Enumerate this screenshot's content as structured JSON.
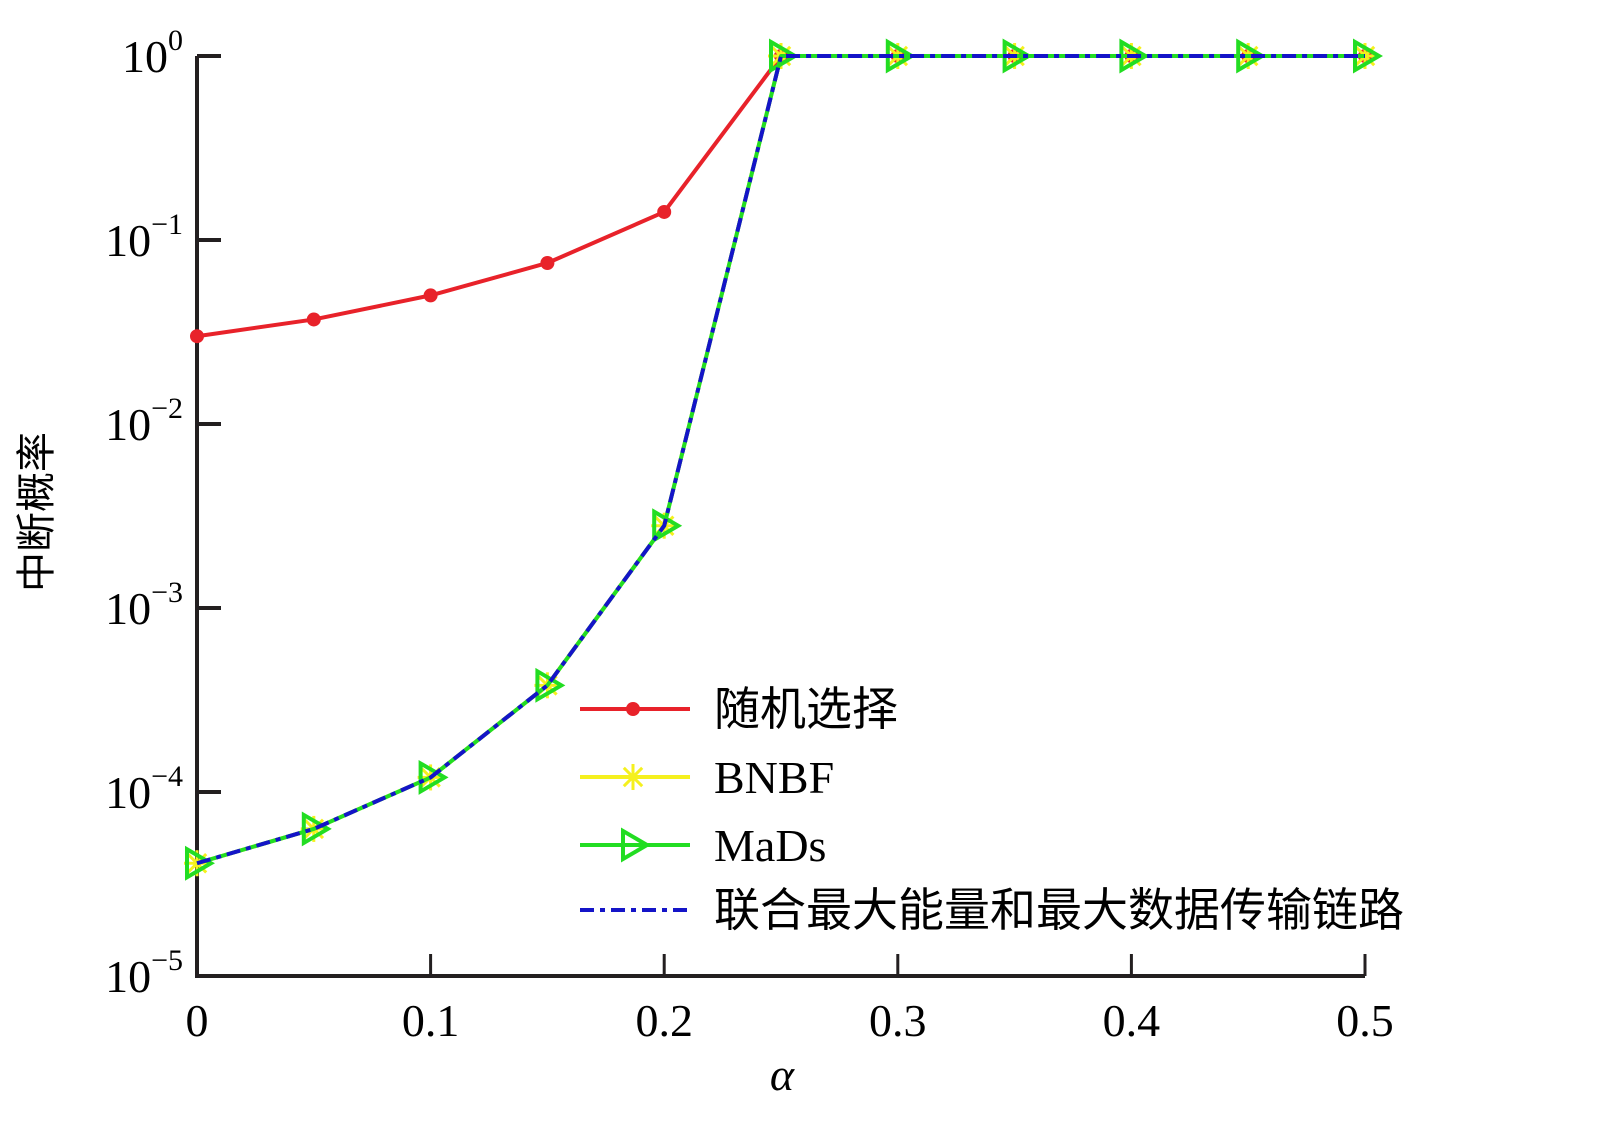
{
  "chart_data": {
    "type": "line",
    "title": "",
    "xlabel": "α",
    "ylabel": "中断概率",
    "yscale": "log",
    "xlim": [
      0,
      0.5
    ],
    "ylim": [
      1e-05,
      1
    ],
    "grid": false,
    "legend_position": "lower right (inside)",
    "x": [
      0,
      0.05,
      0.1,
      0.15,
      0.2,
      0.25,
      0.3,
      0.35,
      0.4,
      0.45,
      0.5
    ],
    "x_ticks": [
      "0",
      "0.1",
      "0.2",
      "0.3",
      "0.4",
      "0.5"
    ],
    "y_ticks": [
      {
        "base": "10",
        "exp": "0"
      },
      {
        "base": "10",
        "exp": "−1"
      },
      {
        "base": "10",
        "exp": "−2"
      },
      {
        "base": "10",
        "exp": "−3"
      },
      {
        "base": "10",
        "exp": "−4"
      },
      {
        "base": "10",
        "exp": "−5"
      }
    ],
    "series": [
      {
        "name": "随机选择",
        "color": "#e8222a",
        "marker": "circle",
        "line": "solid",
        "values": [
          0.03,
          0.037,
          0.05,
          0.075,
          0.142,
          1,
          1,
          1,
          1,
          1,
          1
        ]
      },
      {
        "name": "BNBF",
        "color": "#f5f01e",
        "marker": "asterisk",
        "line": "solid",
        "values": [
          4.1e-05,
          6.3e-05,
          0.00012,
          0.00038,
          0.0028,
          1,
          1,
          1,
          1,
          1,
          1
        ]
      },
      {
        "name": "MaDs",
        "color": "#22dd22",
        "marker": "triangle-right",
        "line": "solid",
        "values": [
          4.1e-05,
          6.3e-05,
          0.00012,
          0.00038,
          0.0028,
          1,
          1,
          1,
          1,
          1,
          1
        ]
      },
      {
        "name": "联合最大能量和最大数据传输链路",
        "color": "#1414c8",
        "marker": "none",
        "line": "dash-dot",
        "values": [
          4.1e-05,
          6.3e-05,
          0.00012,
          0.00038,
          0.0028,
          1,
          1,
          1,
          1,
          1,
          1
        ]
      }
    ]
  }
}
